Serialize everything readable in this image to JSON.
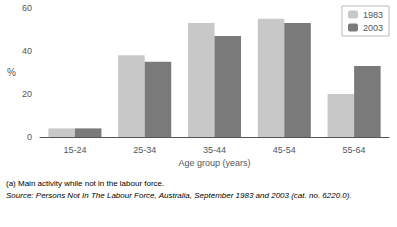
{
  "chart_data": {
    "type": "bar",
    "categories": [
      "15-24",
      "25-34",
      "35-44",
      "45-54",
      "55-64"
    ],
    "series": [
      {
        "name": "1983",
        "color": "#c8c8c8",
        "values": [
          4,
          38,
          53,
          55,
          20
        ]
      },
      {
        "name": "2003",
        "color": "#7a7a7a",
        "values": [
          4,
          35,
          47,
          53,
          33
        ]
      }
    ],
    "xlabel": "Age group (years)",
    "ylabel": "%",
    "ylim": [
      0,
      60
    ],
    "yticks": [
      0,
      20,
      40,
      60
    ],
    "grid": false,
    "legend": "upper right",
    "annotations": [
      "(a) Main activity while not in the labour force.",
      "Source: Persons Not In The Labour Force, Australia, September 1983 and 2003 (cat. no. 6220.0)."
    ]
  }
}
